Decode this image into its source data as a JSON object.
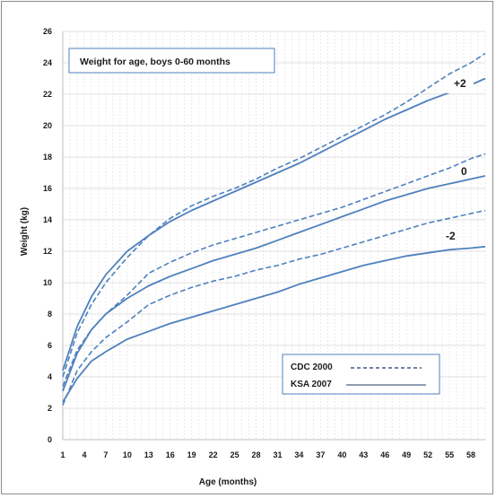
{
  "chart_data": {
    "type": "line",
    "title": "Weight for age, boys 0-60 months",
    "xlabel": "Age (months)",
    "ylabel": "Weight (kg)",
    "xlim": [
      1,
      60
    ],
    "ylim": [
      0,
      26
    ],
    "yticks": [
      0,
      2,
      4,
      6,
      8,
      10,
      12,
      14,
      16,
      18,
      20,
      22,
      24,
      26
    ],
    "xticks": [
      1,
      4,
      7,
      10,
      13,
      16,
      19,
      22,
      25,
      28,
      31,
      34,
      37,
      40,
      43,
      46,
      49,
      52,
      55,
      58
    ],
    "grid": true,
    "color": "#4f81bd",
    "legend": {
      "placement": "bottom-right",
      "entries": [
        {
          "label": "CDC 2000",
          "style": "dashed"
        },
        {
          "label": "KSA 2007",
          "style": "solid"
        }
      ]
    },
    "curve_labels": [
      "+2",
      "0",
      "-2"
    ],
    "series": [
      {
        "group": "+2",
        "dataset": "CDC 2000",
        "style": "dashed",
        "x": [
          1,
          3,
          5,
          7,
          10,
          13,
          16,
          19,
          22,
          25,
          28,
          31,
          34,
          37,
          40,
          43,
          46,
          49,
          52,
          55,
          58,
          60
        ],
        "y": [
          4.0,
          6.8,
          8.6,
          10.0,
          11.6,
          13.0,
          14.1,
          14.9,
          15.5,
          16.0,
          16.6,
          17.3,
          17.9,
          18.6,
          19.3,
          20.0,
          20.7,
          21.5,
          22.4,
          23.3,
          24.0,
          24.6
        ]
      },
      {
        "group": "+2",
        "dataset": "KSA 2007",
        "style": "solid",
        "x": [
          1,
          3,
          5,
          7,
          10,
          13,
          16,
          19,
          22,
          25,
          28,
          31,
          34,
          37,
          40,
          43,
          46,
          49,
          52,
          55,
          58,
          60
        ],
        "y": [
          4.4,
          7.2,
          9.1,
          10.5,
          12.0,
          13.0,
          13.9,
          14.6,
          15.2,
          15.8,
          16.4,
          17.0,
          17.6,
          18.3,
          19.0,
          19.7,
          20.4,
          21.0,
          21.6,
          22.1,
          22.6,
          23.0
        ]
      },
      {
        "group": "0",
        "dataset": "CDC 2000",
        "style": "dashed",
        "x": [
          1,
          3,
          5,
          7,
          10,
          13,
          16,
          19,
          22,
          25,
          28,
          31,
          34,
          37,
          40,
          43,
          46,
          49,
          52,
          55,
          58,
          60
        ],
        "y": [
          3.4,
          5.7,
          7.0,
          8.0,
          9.2,
          10.6,
          11.3,
          11.9,
          12.4,
          12.8,
          13.2,
          13.6,
          14.0,
          14.4,
          14.8,
          15.3,
          15.8,
          16.3,
          16.8,
          17.3,
          17.9,
          18.2
        ]
      },
      {
        "group": "0",
        "dataset": "KSA 2007",
        "style": "solid",
        "x": [
          1,
          3,
          5,
          7,
          10,
          13,
          16,
          19,
          22,
          25,
          28,
          31,
          34,
          37,
          40,
          43,
          46,
          49,
          52,
          55,
          58,
          60
        ],
        "y": [
          3.1,
          5.5,
          7.0,
          8.0,
          9.0,
          9.8,
          10.4,
          10.9,
          11.4,
          11.8,
          12.2,
          12.7,
          13.2,
          13.7,
          14.2,
          14.7,
          15.2,
          15.6,
          16.0,
          16.3,
          16.6,
          16.8
        ]
      },
      {
        "group": "-2",
        "dataset": "CDC 2000",
        "style": "dashed",
        "x": [
          1,
          3,
          5,
          7,
          10,
          13,
          16,
          19,
          22,
          25,
          28,
          31,
          34,
          37,
          40,
          43,
          46,
          49,
          52,
          55,
          58,
          60
        ],
        "y": [
          2.2,
          4.4,
          5.6,
          6.5,
          7.5,
          8.6,
          9.2,
          9.7,
          10.1,
          10.4,
          10.8,
          11.1,
          11.5,
          11.8,
          12.2,
          12.6,
          13.0,
          13.4,
          13.8,
          14.1,
          14.4,
          14.6
        ]
      },
      {
        "group": "-2",
        "dataset": "KSA 2007",
        "style": "solid",
        "x": [
          1,
          3,
          5,
          7,
          10,
          13,
          16,
          19,
          22,
          25,
          28,
          31,
          34,
          37,
          40,
          43,
          46,
          49,
          52,
          55,
          58,
          60
        ],
        "y": [
          2.4,
          3.9,
          5.0,
          5.6,
          6.4,
          6.9,
          7.4,
          7.8,
          8.2,
          8.6,
          9.0,
          9.4,
          9.9,
          10.3,
          10.7,
          11.1,
          11.4,
          11.7,
          11.9,
          12.1,
          12.2,
          12.3
        ]
      }
    ]
  }
}
